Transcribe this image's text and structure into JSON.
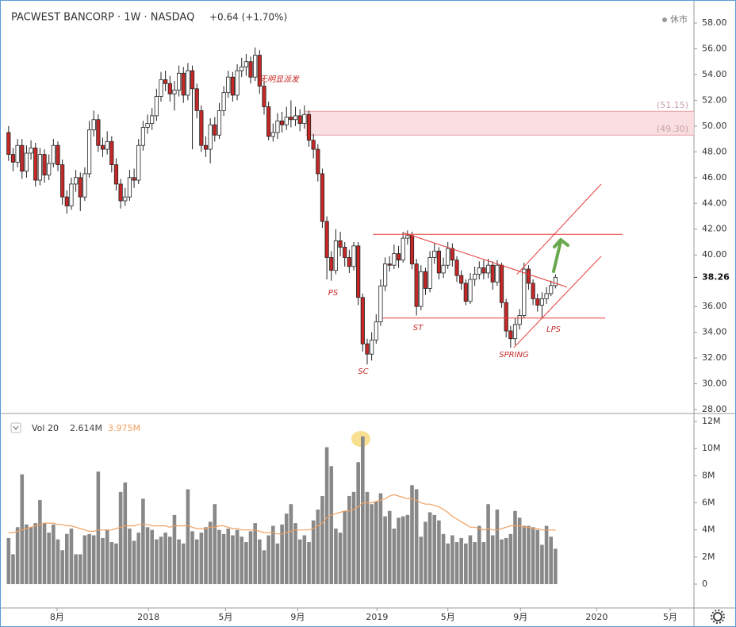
{
  "chart_data": [
    {
      "type": "candlestick",
      "title": "PACWEST BANCORP · 1W · NASDAQ",
      "change": "+0.64 (+1.70%)",
      "status": "休市",
      "up_color": "#ffffff",
      "down_color": "#c62828",
      "wick_color": "#222222",
      "grid": false,
      "open": [
        49.5,
        47.8,
        47.2,
        48.5,
        46.5,
        47.9,
        48.3,
        45.8,
        47.8,
        46.2,
        47.1,
        48.5,
        47,
        44.5,
        43.8,
        45.5,
        46,
        44.5,
        46.3,
        49.7,
        50.5,
        48.5,
        48.2,
        48.8,
        47,
        45.5,
        44.2,
        44.5,
        46,
        45.8,
        48.5,
        49.9,
        50.2,
        50.8,
        52.3,
        53.6,
        53.3,
        52.5,
        52.8,
        54.1,
        52.4,
        54.3,
        52.9,
        51.2,
        48.5,
        48.2,
        50.1,
        49.3,
        51.2,
        52.6,
        53.8,
        52.4,
        54.3,
        54.6,
        55,
        53.8,
        55.5,
        53.1,
        51.5,
        49.2,
        49.5,
        50.4,
        50.1,
        50.7,
        50.5,
        50.8,
        50.2,
        50.9,
        48.9,
        48.2,
        46.3,
        42.6,
        39.8,
        38.8,
        41.1,
        40.6,
        39.8,
        39.1,
        40.7,
        36.7,
        33.1,
        32.3,
        33.4,
        34.8,
        37.6,
        39.3,
        39.2,
        40.1,
        39.6,
        41.3,
        41.5,
        39.3,
        36,
        38.7,
        37.4,
        39.8,
        40.3,
        38.6,
        39.2,
        40.5,
        39.6,
        38.4,
        37.8,
        36.4,
        38.1,
        38.5,
        39,
        38.6,
        39.2,
        37.9,
        39.2,
        36.3,
        34.1,
        33.5,
        34.6,
        35.3,
        38.9,
        37.8,
        36.6,
        36.1,
        36.6,
        37,
        37.62
      ],
      "high": [
        50.0,
        48.3,
        49.0,
        49.0,
        48.5,
        48.9,
        48.7,
        48.3,
        48.2,
        47.8,
        49.0,
        48.8,
        47.4,
        45.0,
        46.0,
        46.6,
        46.4,
        46.8,
        50.4,
        51.2,
        50.9,
        49.1,
        49.6,
        49.2,
        47.5,
        45.9,
        45.2,
        46.6,
        46.7,
        49.0,
        50.4,
        50.9,
        51.4,
        52.9,
        54.2,
        54.3,
        53.9,
        53.5,
        54.7,
        54.6,
        54.9,
        54.7,
        53.3,
        51.6,
        49.2,
        50.6,
        50.7,
        51.8,
        53.1,
        54.3,
        54.2,
        54.8,
        55.3,
        55.6,
        55.4,
        56.1,
        55.9,
        53.5,
        51.9,
        50.2,
        51.0,
        51.1,
        51.5,
        52.0,
        51.5,
        51.3,
        51.6,
        51.2,
        49.4,
        48.6,
        46.7,
        43.0,
        40.3,
        42.0,
        41.8,
        41.0,
        40.4,
        41.0,
        41.0,
        37.0,
        33.5,
        34.0,
        35.4,
        38.1,
        39.8,
        39.9,
        40.8,
        40.7,
        41.8,
        41.9,
        41.8,
        39.7,
        39.2,
        39.0,
        40.3,
        40.9,
        40.6,
        39.8,
        41.0,
        40.9,
        39.9,
        38.8,
        38.1,
        38.6,
        39.1,
        39.5,
        39.6,
        39.7,
        39.5,
        39.6,
        39.4,
        36.6,
        34.5,
        35.1,
        35.8,
        39.4,
        39.2,
        38.1,
        37.0,
        37.1,
        37.5,
        38.0,
        38.5
      ],
      "low": [
        47.3,
        46.5,
        46.8,
        45.9,
        46.0,
        47.4,
        45.3,
        45.4,
        45.6,
        45.8,
        46.8,
        46.5,
        43.9,
        43.2,
        43.5,
        44.9,
        43.4,
        44.2,
        46.0,
        49.2,
        48.0,
        47.6,
        47.8,
        46.4,
        45.0,
        43.6,
        43.8,
        44.2,
        45.2,
        45.5,
        48.1,
        49.4,
        49.7,
        50.4,
        51.9,
        52.7,
        51.9,
        51.2,
        52.3,
        51.8,
        52.0,
        48.2,
        50.6,
        48.0,
        47.6,
        47.1,
        48.8,
        49.0,
        50.8,
        52.2,
        51.9,
        52.0,
        53.8,
        53.9,
        53.3,
        53.5,
        52.5,
        50.9,
        48.9,
        48.8,
        49.0,
        49.5,
        49.7,
        49.9,
        50.0,
        49.6,
        49.8,
        48.4,
        47.5,
        45.7,
        42.1,
        38.1,
        38.0,
        38.5,
        39.9,
        39.1,
        38.6,
        38.8,
        36.1,
        32.5,
        31.5,
        31.8,
        33.1,
        34.5,
        37.2,
        38.7,
        38.9,
        39.0,
        39.4,
        40.8,
        38.9,
        35.3,
        35.7,
        36.9,
        37.1,
        39.3,
        38.1,
        38.2,
        38.9,
        39.1,
        37.9,
        37.3,
        36.1,
        36.2,
        37.6,
        38.1,
        38.1,
        38.2,
        37.3,
        37.6,
        35.9,
        33.6,
        32.8,
        33.0,
        34.2,
        35.1,
        37.3,
        36.1,
        35.6,
        35.1,
        36.2,
        36.8,
        37.4
      ],
      "close": [
        47.8,
        47.2,
        48.5,
        46.5,
        47.9,
        48.3,
        45.8,
        47.8,
        46.2,
        47.1,
        48.5,
        47,
        44.5,
        43.8,
        45.5,
        46,
        44.5,
        46.3,
        49.7,
        50.5,
        48.5,
        48.2,
        48.8,
        47,
        45.5,
        44.2,
        44.5,
        46,
        45.8,
        48.5,
        49.9,
        50.2,
        50.8,
        52.3,
        53.6,
        53.3,
        52.5,
        52.8,
        54.1,
        52.4,
        54.3,
        52.9,
        51.2,
        48.5,
        48.2,
        50.1,
        49.3,
        51.2,
        52.6,
        53.8,
        52.4,
        54.3,
        54.6,
        55,
        53.8,
        55.5,
        53.1,
        51.5,
        49.2,
        49.5,
        50.4,
        50.1,
        50.7,
        50.5,
        50.8,
        50.2,
        50.9,
        48.9,
        48.2,
        46.3,
        42.6,
        39.8,
        38.8,
        41.1,
        40.6,
        39.8,
        39.1,
        40.7,
        36.7,
        33.1,
        32.3,
        33.4,
        34.8,
        37.6,
        39.3,
        39.2,
        40.1,
        39.6,
        41.3,
        41.5,
        39.3,
        36,
        38.7,
        37.4,
        39.8,
        40.3,
        38.6,
        39.2,
        40.5,
        39.6,
        38.4,
        37.8,
        36.4,
        38.1,
        38.5,
        39,
        38.6,
        39.2,
        37.9,
        39.2,
        36.3,
        34.1,
        33.5,
        34.6,
        35.3,
        38.9,
        37.8,
        36.6,
        36.1,
        36.6,
        37,
        37.62,
        38.26
      ],
      "xlim": [
        -0.5,
        152.9
      ],
      "xticks": [
        {
          "value": 10.8,
          "label": "8月"
        },
        {
          "value": 31.2,
          "label": "2018"
        },
        {
          "value": 48.4,
          "label": "5月"
        },
        {
          "value": 64.5,
          "label": "9月"
        },
        {
          "value": 82.2,
          "label": "2019"
        },
        {
          "value": 98,
          "label": "5月"
        },
        {
          "value": 114.2,
          "label": "9月"
        },
        {
          "value": 131.2,
          "label": "2020"
        },
        {
          "value": 147.6,
          "label": "5月"
        }
      ],
      "ylim": [
        28,
        58
      ],
      "yticks": [
        {
          "value": 58,
          "label": "58.00"
        },
        {
          "value": 56,
          "label": "56.00"
        },
        {
          "value": 54,
          "label": "54.00"
        },
        {
          "value": 52,
          "label": "52.00"
        },
        {
          "value": 50,
          "label": "50.00"
        },
        {
          "value": 48,
          "label": "48.00"
        },
        {
          "value": 46,
          "label": "46.00"
        },
        {
          "value": 44,
          "label": "44.00"
        },
        {
          "value": 42,
          "label": "42.00"
        },
        {
          "value": 40,
          "label": "40.00"
        },
        {
          "value": 36,
          "label": "36.00"
        },
        {
          "value": 34,
          "label": "34.00"
        },
        {
          "value": 32,
          "label": "32.00"
        },
        {
          "value": 30,
          "label": "30.00"
        },
        {
          "value": 28,
          "label": "28.00"
        }
      ],
      "zone": {
        "from": 66.2,
        "color": "#f8d7da",
        "low": {
          "value": 49.3,
          "label": "(49.30)"
        },
        "high": {
          "value": 51.15,
          "label": "(51.15)"
        }
      },
      "trendline_color": "#e53935",
      "trendlines": [
        [
          [
            81.3,
            41.6
          ],
          [
            137,
            41.6
          ]
        ],
        [
          [
            83.5,
            35.1
          ],
          [
            133.1,
            35.1
          ]
        ],
        [
          [
            88.3,
            41.7
          ],
          [
            124.6,
            37.5
          ]
        ],
        [
          [
            113.4,
            38.5
          ],
          [
            132.2,
            45.5
          ]
        ],
        [
          [
            112.7,
            32.8
          ],
          [
            132.2,
            39.9
          ]
        ]
      ],
      "annotations": [
        "无明显派发",
        "PS",
        "SC",
        "ST",
        "SPRING",
        "LPS"
      ]
    },
    {
      "type": "bar",
      "legend": "Vol 20",
      "ylim": [
        0,
        12
      ],
      "yticks": [
        {
          "value": 12,
          "label": "12M"
        },
        {
          "value": 10,
          "label": "10M"
        },
        {
          "value": 8,
          "label": "8M"
        },
        {
          "value": 6,
          "label": "6M"
        },
        {
          "value": 4,
          "label": "4M"
        },
        {
          "value": 2,
          "label": "2M"
        },
        0
      ],
      "volume": {
        "color": "#888888",
        "last_label": "2.614M",
        "values": [
          3.4,
          2.2,
          4.2,
          8.1,
          4.4,
          4.2,
          4.5,
          6.2,
          4.5,
          3.8,
          4.4,
          3.3,
          2.5,
          3.7,
          4.1,
          2.2,
          2.2,
          3.6,
          3.7,
          3.6,
          8.3,
          3.4,
          4.0,
          3.1,
          3.0,
          6.8,
          7.5,
          4.1,
          3.2,
          3.8,
          6.3,
          4.2,
          4.0,
          3.3,
          3.5,
          3.8,
          3.5,
          5.1,
          3.3,
          3.0,
          7.0,
          3.9,
          3.3,
          3.8,
          4.2,
          4.6,
          5.9,
          4.0,
          3.7,
          4.1,
          3.6,
          4.0,
          3.5,
          3.1,
          3.9,
          4.5,
          3.3,
          2.5,
          3.6,
          4.3,
          3.0,
          4.4,
          5.2,
          5.9,
          4.5,
          3.3,
          3.6,
          3.1,
          4.7,
          5.5,
          6.5,
          10.1,
          8.7,
          4.1,
          3.8,
          5.4,
          6.5,
          6.8,
          9.0,
          10.9,
          6.8,
          5.9,
          6.1,
          6.7,
          5.0,
          5.4,
          4.1,
          4.9,
          5.0,
          5.1,
          7.3,
          7.0,
          3.5,
          4.6,
          5.3,
          5.1,
          4.7,
          3.7,
          3.0,
          3.6,
          3.1,
          3.4,
          3.0,
          3.6,
          3.1,
          4.3,
          3.1,
          5.9,
          3.6,
          5.5,
          3.3,
          3.4,
          3.7,
          5.4,
          4.9,
          4.3,
          4.3,
          4.2,
          4.0,
          2.9,
          4.3,
          3.5,
          2.614
        ]
      },
      "ma": {
        "color": "#f0a060",
        "last_label": "3.975M",
        "values": [
          3.8,
          3.8,
          3.9,
          4.0,
          4.1,
          4.2,
          4.3,
          4.4,
          4.5,
          4.5,
          4.5,
          4.4,
          4.4,
          4.3,
          4.3,
          4.2,
          4.1,
          4.0,
          3.9,
          3.9,
          4.0,
          4.0,
          4.0,
          4.0,
          4.1,
          4.2,
          4.3,
          4.3,
          4.3,
          4.4,
          4.4,
          4.4,
          4.3,
          4.3,
          4.3,
          4.3,
          4.2,
          4.3,
          4.3,
          4.3,
          4.3,
          4.2,
          4.1,
          4.1,
          4.1,
          4.2,
          4.2,
          4.3,
          4.3,
          4.2,
          4.1,
          4.1,
          4.0,
          4.0,
          4.0,
          4.0,
          3.9,
          3.8,
          3.8,
          3.8,
          3.7,
          3.7,
          3.8,
          3.9,
          4.0,
          4.0,
          4.0,
          4.0,
          4.1,
          4.3,
          4.5,
          4.9,
          5.1,
          5.2,
          5.3,
          5.4,
          5.4,
          5.5,
          5.7,
          6.0,
          6.0,
          6.0,
          6.1,
          6.2,
          6.3,
          6.5,
          6.6,
          6.5,
          6.4,
          6.3,
          6.3,
          6.2,
          6.0,
          5.9,
          5.9,
          5.8,
          5.7,
          5.5,
          5.3,
          5.0,
          4.8,
          4.6,
          4.4,
          4.2,
          4.2,
          4.1,
          4.0,
          4.1,
          4.0,
          4.0,
          4.1,
          4.2,
          4.3,
          4.3,
          4.3,
          4.2,
          4.2,
          4.1,
          4.1,
          4.0,
          4.0,
          4.0,
          3.975
        ]
      }
    }
  ]
}
